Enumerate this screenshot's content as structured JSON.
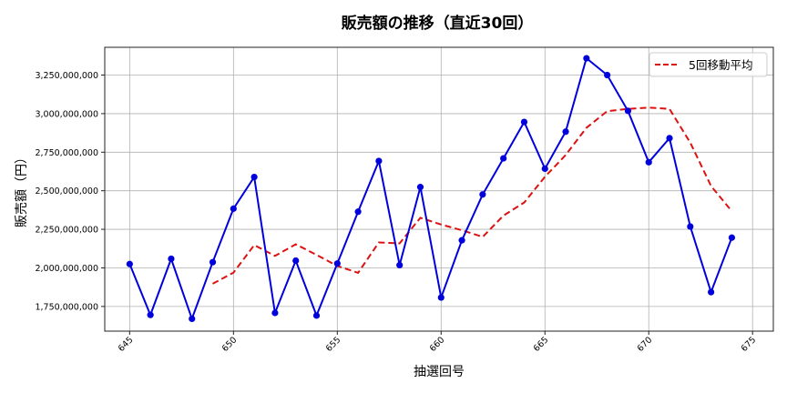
{
  "chart_data": {
    "type": "line",
    "title": "販売額の推移（直近30回）",
    "xlabel": "抽選回号",
    "ylabel": "販売額（円）",
    "x": [
      645,
      646,
      647,
      648,
      649,
      650,
      651,
      652,
      653,
      654,
      655,
      656,
      657,
      658,
      659,
      660,
      661,
      662,
      663,
      664,
      665,
      666,
      667,
      668,
      669,
      670,
      671,
      672,
      673,
      674
    ],
    "series": [
      {
        "name": "販売額",
        "style": "solid",
        "marker": "circle",
        "color": "#0000dd",
        "values": [
          2025000000,
          1695000000,
          2059000000,
          1670000000,
          2037000000,
          2384000000,
          2589000000,
          1708000000,
          2047000000,
          1691000000,
          2028000000,
          2364000000,
          2693000000,
          2018000000,
          2524000000,
          1808000000,
          2179000000,
          2476000000,
          2710000000,
          2946000000,
          2643000000,
          2883000000,
          3359000000,
          3250000000,
          3018000000,
          2685000000,
          2841000000,
          2268000000,
          1843000000,
          2196000000
        ]
      },
      {
        "name": "5回移動平均",
        "style": "dashed",
        "color": "#dd1111",
        "x_start": 649,
        "values": [
          1897000000,
          1969000000,
          2148000000,
          2078000000,
          2153000000,
          2084000000,
          2013000000,
          1968000000,
          2165000000,
          2159000000,
          2325000000,
          2281000000,
          2244000000,
          2201000000,
          2339000000,
          2424000000,
          2591000000,
          2732000000,
          2908000000,
          3016000000,
          3031000000,
          3039000000,
          3031000000,
          2812000000,
          2531000000,
          2367000000
        ]
      }
    ],
    "xlim": [
      643.8,
      676
    ],
    "ylim": [
      1590000000,
      3430000000
    ],
    "x_ticks": [
      645,
      650,
      655,
      660,
      665,
      670,
      675
    ],
    "y_ticks": [
      1750000000,
      2000000000,
      2250000000,
      2500000000,
      2750000000,
      3000000000,
      3250000000
    ],
    "y_tick_labels": [
      "1,750,000,000",
      "2,000,000,000",
      "2,250,000,000",
      "2,500,000,000",
      "2,750,000,000",
      "3,000,000,000",
      "3,250,000,000"
    ],
    "grid": true,
    "legend": {
      "position": "upper right",
      "entries": [
        "5回移動平均"
      ]
    }
  }
}
